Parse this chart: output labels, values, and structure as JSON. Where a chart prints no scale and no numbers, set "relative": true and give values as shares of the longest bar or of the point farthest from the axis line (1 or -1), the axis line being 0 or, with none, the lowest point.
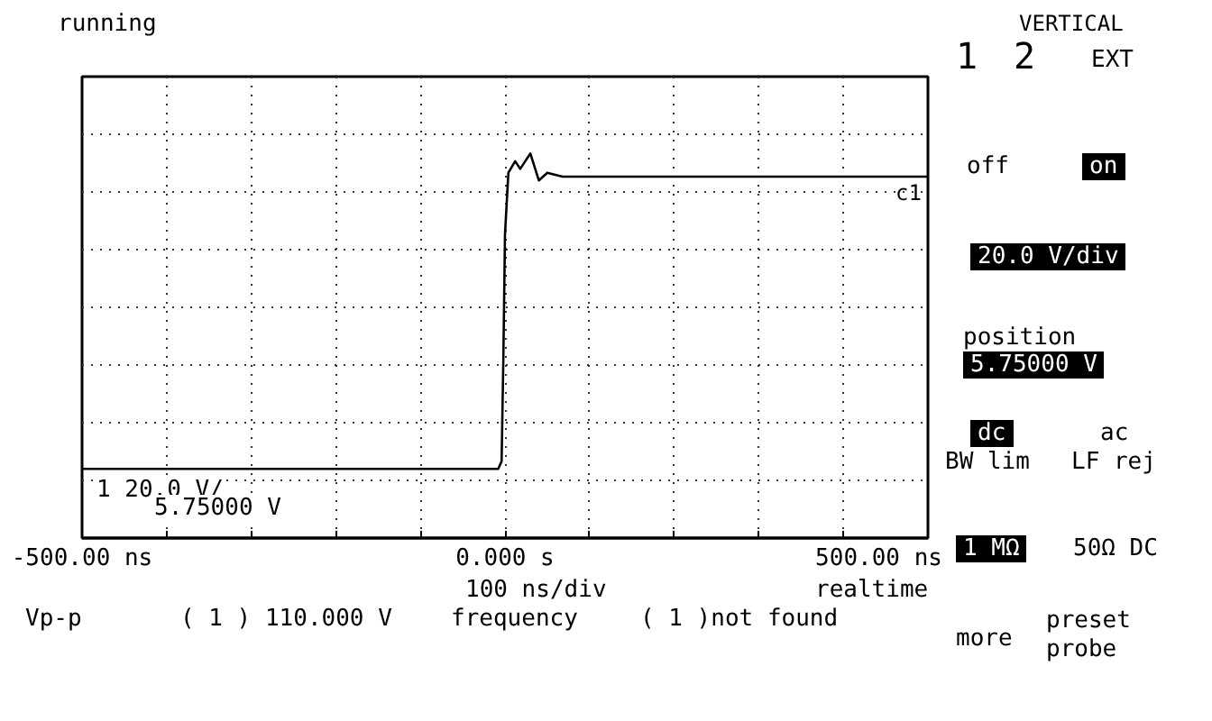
{
  "chart_data": {
    "type": "line",
    "relative": true,
    "xlim": [
      -500,
      500
    ],
    "xticks": [
      {
        "value": -500,
        "label": "-500.00 ns"
      },
      {
        "value": -400,
        "label": null
      },
      {
        "value": -300,
        "label": null
      },
      {
        "value": -200,
        "label": null
      },
      {
        "value": -100,
        "label": null
      },
      {
        "value": 0,
        "label": "0.000 s"
      },
      {
        "value": 100,
        "label": null
      },
      {
        "value": 200,
        "label": null
      },
      {
        "value": 300,
        "label": null
      },
      {
        "value": 400,
        "label": null
      },
      {
        "value": 500,
        "label": "500.00 ns"
      }
    ],
    "x": [
      -500,
      -300,
      -200,
      -8,
      -4,
      -2,
      0,
      4,
      12,
      18,
      30,
      40,
      50,
      68,
      200,
      350,
      500
    ],
    "series": [
      {
        "name": "c1",
        "color": "#000000",
        "values": [
          0.18,
          0.18,
          0.18,
          0.18,
          0.2,
          0.46,
          0.79,
          0.95,
          0.98,
          0.96,
          1.0,
          0.93,
          0.95,
          0.94,
          0.94,
          0.94,
          0.94
        ]
      }
    ],
    "grid": true,
    "line_style": "solid",
    "marker": "none",
    "annotations": [
      "running",
      "1 20.0 V/",
      "5.75000 V",
      "100 ns/div",
      "realtime",
      "Vp-p",
      "( 1 ) 110.000 V",
      "frequency",
      "( 1 )not found",
      "VERTICAL",
      "1",
      "2",
      "EXT",
      "off",
      "on",
      "20.0 V/div",
      "position",
      "5.75000 V",
      "dc",
      "ac",
      "BW lim",
      "LF rej",
      "1 MΩ",
      "50Ω DC",
      "more",
      "preset",
      "probe"
    ]
  }
}
